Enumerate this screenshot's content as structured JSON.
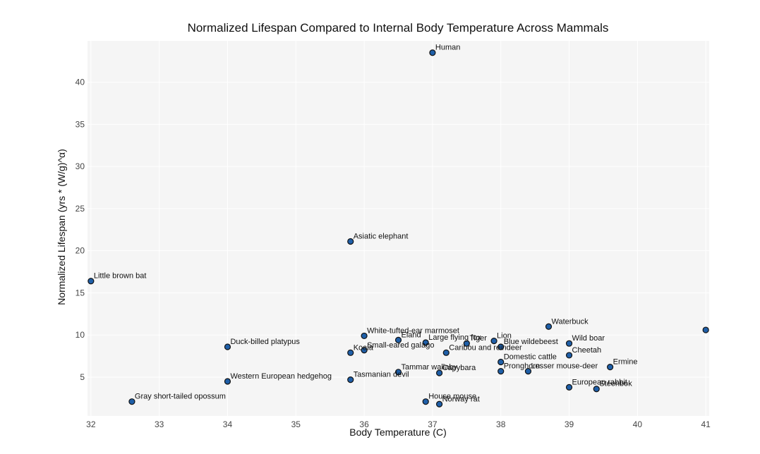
{
  "chart_data": {
    "type": "scatter",
    "title": "Normalized Lifespan Compared to Internal Body Temperature Across Mammals",
    "xlabel": "Body Temperature (C)",
    "ylabel": "Normalized Lifespan (yrs * (W/g)^α)",
    "xlim": [
      31.95,
      41.05
    ],
    "ylim": [
      0.4,
      44.9
    ],
    "xticks": [
      32,
      33,
      34,
      35,
      36,
      37,
      38,
      39,
      40,
      41
    ],
    "yticks": [
      5,
      10,
      15,
      20,
      25,
      30,
      35,
      40
    ],
    "grid": true,
    "marker_color": "#1f5fa8",
    "marker_edge_color": "#111111",
    "plot_background": "#f5f5f5",
    "points": [
      {
        "label": "Human",
        "x": 37.0,
        "y": 43.5
      },
      {
        "label": "Asiatic elephant",
        "x": 35.8,
        "y": 21.1
      },
      {
        "label": "Little brown bat",
        "x": 32.0,
        "y": 16.4
      },
      {
        "label": "Waterbuck",
        "x": 38.7,
        "y": 11.0
      },
      {
        "label": "",
        "x": 41.0,
        "y": 10.6
      },
      {
        "label": "White-tufted-ear marmoset",
        "x": 36.0,
        "y": 9.9
      },
      {
        "label": "Eland",
        "x": 36.5,
        "y": 9.4
      },
      {
        "label": "Lion",
        "x": 37.9,
        "y": 9.3
      },
      {
        "label": "Large flying fox",
        "x": 36.9,
        "y": 9.1
      },
      {
        "label": "Tiger",
        "x": 37.5,
        "y": 9.0
      },
      {
        "label": "Wild boar",
        "x": 39.0,
        "y": 9.0
      },
      {
        "label": "Blue wildebeest",
        "x": 38.0,
        "y": 8.6
      },
      {
        "label": "Duck-billed platypus",
        "x": 34.0,
        "y": 8.6
      },
      {
        "label": "Small-eared galago",
        "x": 36.0,
        "y": 8.2
      },
      {
        "label": "Koala",
        "x": 35.8,
        "y": 7.9
      },
      {
        "label": "Caribou and reindeer",
        "x": 37.2,
        "y": 7.9
      },
      {
        "label": "Cheetah",
        "x": 39.0,
        "y": 7.6
      },
      {
        "label": "Domestic cattle",
        "x": 38.0,
        "y": 6.8
      },
      {
        "label": "Ermine",
        "x": 39.6,
        "y": 6.2
      },
      {
        "label": "Pronghorn",
        "x": 38.0,
        "y": 5.7
      },
      {
        "label": "Lesser mouse-deer",
        "x": 38.4,
        "y": 5.7
      },
      {
        "label": "Tammar wallaby",
        "x": 36.5,
        "y": 5.6
      },
      {
        "label": "Capybara",
        "x": 37.1,
        "y": 5.5
      },
      {
        "label": "Tasmanian devil",
        "x": 35.8,
        "y": 4.7
      },
      {
        "label": "Western European hedgehog",
        "x": 34.0,
        "y": 4.5
      },
      {
        "label": "European rabbit",
        "x": 39.0,
        "y": 3.8
      },
      {
        "label": "Steenbok",
        "x": 39.4,
        "y": 3.6
      },
      {
        "label": "Gray short-tailed opossum",
        "x": 32.6,
        "y": 2.1
      },
      {
        "label": "House mouse",
        "x": 36.9,
        "y": 2.1
      },
      {
        "label": "Norway rat",
        "x": 37.1,
        "y": 1.8
      }
    ]
  }
}
